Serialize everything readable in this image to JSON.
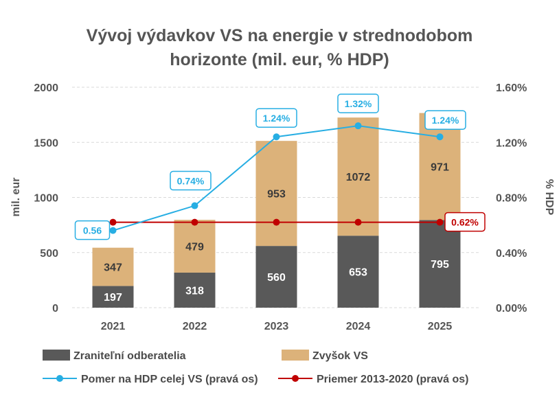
{
  "chart_data": {
    "type": "bar",
    "subtype": "stacked-bar-with-lines",
    "title_lines": [
      "Vývoj výdavkov VS na energie v strednodobom",
      "horizonte (mil. eur, % HDP)"
    ],
    "ylabel": "mil. eur",
    "ylabel_right": "% HDP",
    "categories": [
      "2021",
      "2022",
      "2023",
      "2024",
      "2025"
    ],
    "ylim": [
      0,
      2000
    ],
    "yticks": [
      "0",
      "500",
      "1000",
      "1500",
      "2000"
    ],
    "y2lim": [
      0,
      1.6
    ],
    "y2ticks": [
      "0.00%",
      "0.40%",
      "0.80%",
      "1.20%",
      "1.60%"
    ],
    "grid": true,
    "legend_position": "bottom",
    "bar_series": [
      {
        "name": "Zraniteľní odberatelia",
        "values": [
          197,
          318,
          560,
          653,
          795
        ],
        "color": "#595959"
      },
      {
        "name": "Zvyšok VS",
        "values": [
          347,
          479,
          953,
          1072,
          971
        ],
        "color": "#dcb27a"
      }
    ],
    "line_series": [
      {
        "name": "Pomer na HDP celej VS (pravá os)",
        "values": [
          0.56,
          0.74,
          1.24,
          1.32,
          1.24
        ],
        "labels": [
          "0.56",
          "0.74%",
          "1.24%",
          "1.32%",
          "1.24%"
        ],
        "color": "#27aee3"
      },
      {
        "name": "Priemer 2013-2020 (pravá os)",
        "values": [
          0.62,
          0.62,
          0.62,
          0.62,
          0.62
        ],
        "label": "0.62%",
        "color": "#c00000"
      }
    ]
  }
}
